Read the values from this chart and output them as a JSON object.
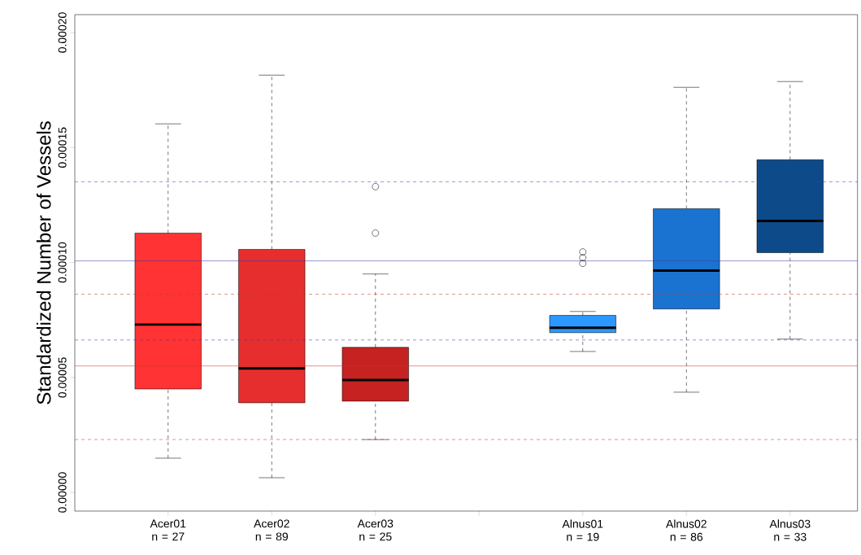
{
  "chart_data": {
    "type": "box",
    "ylabel": "Standardized Number of Vessels",
    "categories": [
      "Acer01 n = 27",
      "Acer02 n = 89",
      "Acer03 n = 25",
      null,
      "Alnus01 n = 19",
      "Alnus02 n = 86",
      "Alnus03 n = 33"
    ],
    "boxes": [
      {
        "low": 1.49e-05,
        "q1": 4.5e-05,
        "median": 7.3e-05,
        "q3": 0.0001128,
        "high": 0.0001603
      },
      {
        "low": 6.4e-06,
        "q1": 3.9e-05,
        "median": 5.39e-05,
        "q3": 0.0001057,
        "high": 0.0001815
      },
      {
        "low": 2.3e-05,
        "q1": 3.97e-05,
        "median": 4.89e-05,
        "q3": 6.31e-05,
        "high": 9.5e-05,
        "outliers": [
          0.0001128,
          0.000133
        ]
      },
      null,
      {
        "low": 6.13e-05,
        "q1": 6.95e-05,
        "median": 7.16e-05,
        "q3": 7.7e-05,
        "high": 7.87e-05,
        "outliers": [
          9.96e-05,
          0.0001021,
          0.0001046
        ]
      },
      {
        "low": 4.36e-05,
        "q1": 7.98e-05,
        "median": 9.65e-05,
        "q3": 0.0001234,
        "high": 0.0001762
      },
      {
        "low": 6.67e-05,
        "q1": 0.0001043,
        "median": 0.0001181,
        "q3": 0.0001447,
        "high": 0.0001787
      }
    ],
    "colors": [
      "#ff3333",
      "#e62e2e",
      "#c62222",
      null,
      "#2a98ff",
      "#1a73d0",
      "#0d4a8a"
    ],
    "ylim": [
      -8.1e-06,
      0.0002078
    ],
    "yticks": [
      {
        "value": 0,
        "label": "0.00000"
      },
      {
        "value": 5e-05,
        "label": "0.00005"
      },
      {
        "value": 0.0001,
        "label": "0.00010"
      },
      {
        "value": 0.00015,
        "label": "0.00015"
      },
      {
        "value": 0.0002,
        "label": "0.00020"
      }
    ],
    "ref_lines": [
      {
        "axis": "y",
        "value": 5.5e-05,
        "color": "#c0392b",
        "line_style": "solid"
      },
      {
        "axis": "y",
        "value": 8.62e-05,
        "color": "#c0392b",
        "line_style": "dashed"
      },
      {
        "axis": "y",
        "value": 2.3e-05,
        "color": "#c0392b",
        "line_style": "dashed"
      },
      {
        "axis": "y",
        "value": 0.0001007,
        "color": "#3a3aa8",
        "line_style": "solid"
      },
      {
        "axis": "y",
        "value": 0.0001351,
        "color": "#3a3aa8",
        "line_style": "dashed"
      },
      {
        "axis": "y",
        "value": 6.63e-05,
        "color": "#3a3aa8",
        "line_style": "dashed"
      }
    ]
  }
}
